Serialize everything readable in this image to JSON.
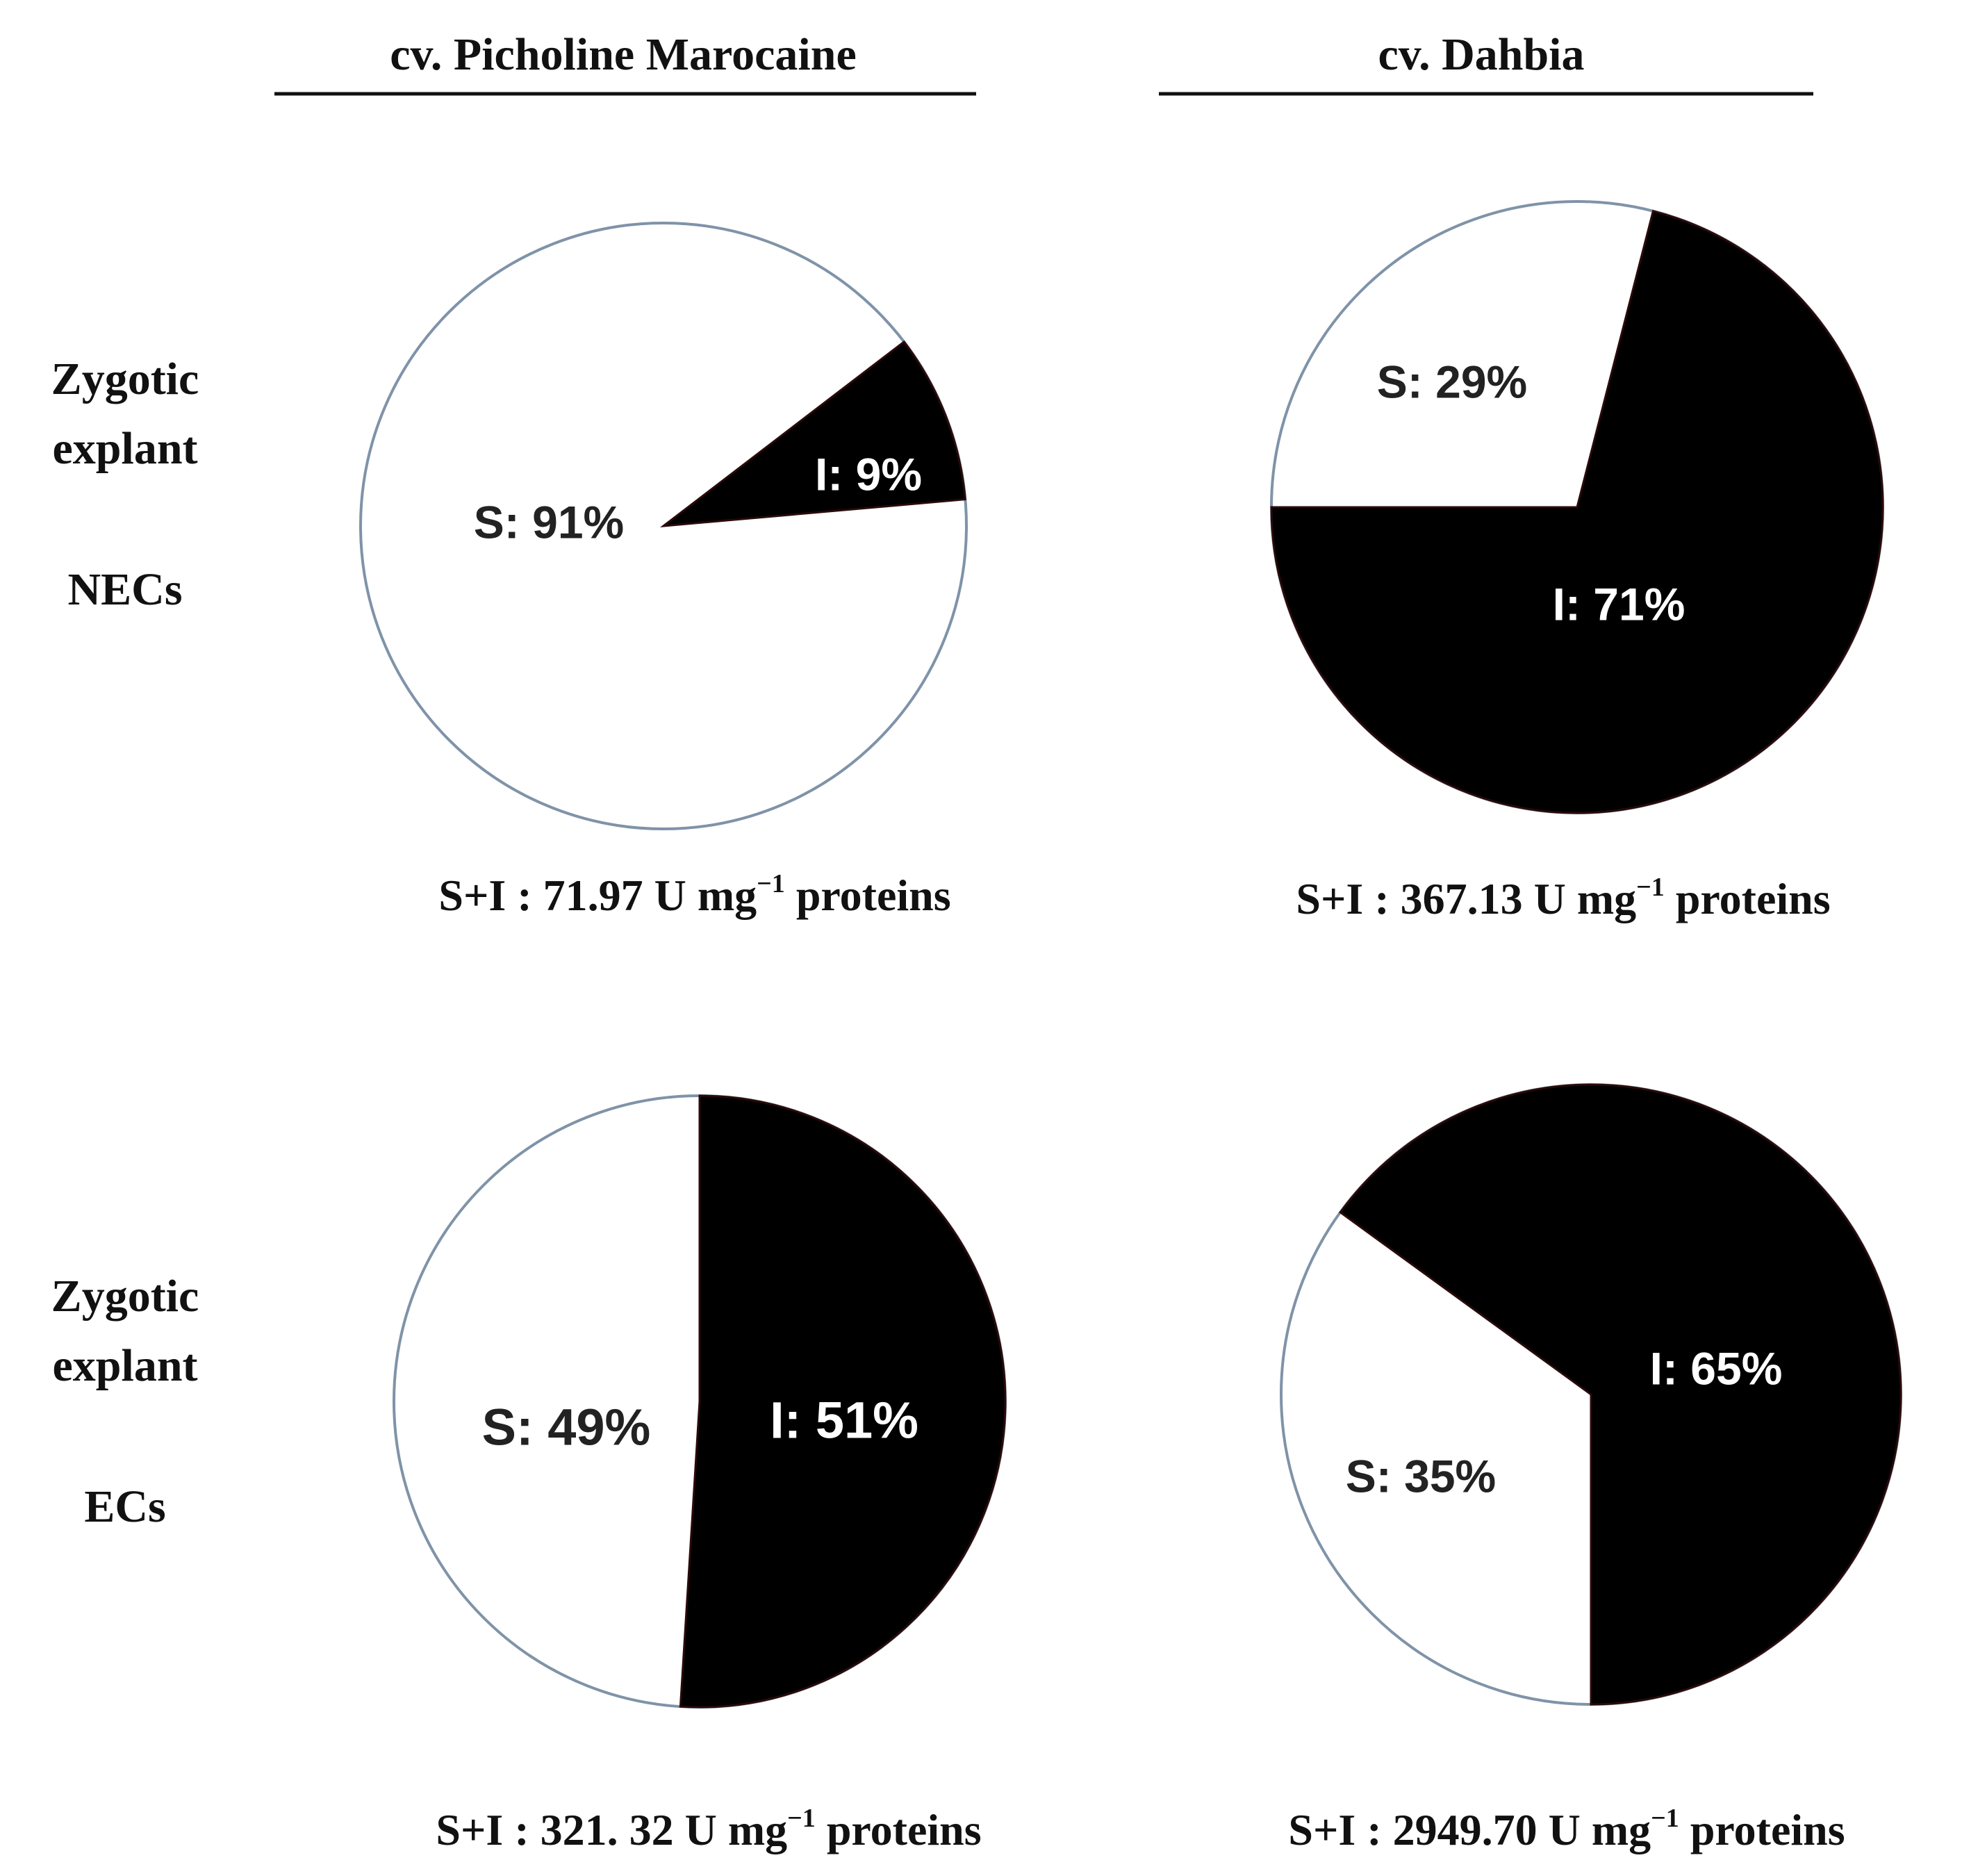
{
  "columns": [
    {
      "label": "cv. Picholine Marocaine"
    },
    {
      "label": "cv. Dahbia"
    }
  ],
  "rows": [
    {
      "line1": "Zygotic",
      "line2": "explant",
      "line3": "NECs"
    },
    {
      "line1": "Zygotic",
      "line2": "explant",
      "line3": "ECs"
    }
  ],
  "colors": {
    "I": "#000000",
    "S": "#ffffff",
    "outline": "#7f93a8",
    "text_on_white": "#222222",
    "text_on_black": "#ffffff"
  },
  "chart_data": [
    {
      "type": "pie",
      "title": "cv. Picholine Marocaine — Zygotic explant NECs",
      "slices": [
        {
          "name": "S",
          "value": 91,
          "label": "S: 91%"
        },
        {
          "name": "I",
          "value": 9,
          "label": "I: 9%"
        }
      ],
      "total_label": "S+I :  71.97 U mg",
      "total_sup": "−1",
      "total_unit": " proteins"
    },
    {
      "type": "pie",
      "title": "cv. Dahbia — Zygotic explant NECs",
      "slices": [
        {
          "name": "S",
          "value": 29,
          "label": "S: 29%"
        },
        {
          "name": "I",
          "value": 71,
          "label": "I: 71%"
        }
      ],
      "total_label": "S+I :  367.13 U mg",
      "total_sup": "−1",
      "total_unit": " proteins"
    },
    {
      "type": "pie",
      "title": "cv. Picholine Marocaine — Zygotic explant ECs",
      "slices": [
        {
          "name": "S",
          "value": 49,
          "label": "S: 49%"
        },
        {
          "name": "I",
          "value": 51,
          "label": "I: 51%"
        }
      ],
      "total_label": "S+I :  321. 32 U mg",
      "total_sup": "−1",
      "total_unit": " proteins"
    },
    {
      "type": "pie",
      "title": "cv. Dahbia — Zygotic explant ECs",
      "slices": [
        {
          "name": "S",
          "value": 35,
          "label": "S: 35%"
        },
        {
          "name": "I",
          "value": 65,
          "label": "I: 65%"
        }
      ],
      "total_label": "S+I :  2949.70 U mg",
      "total_sup": "−1",
      "total_unit": " proteins"
    }
  ]
}
